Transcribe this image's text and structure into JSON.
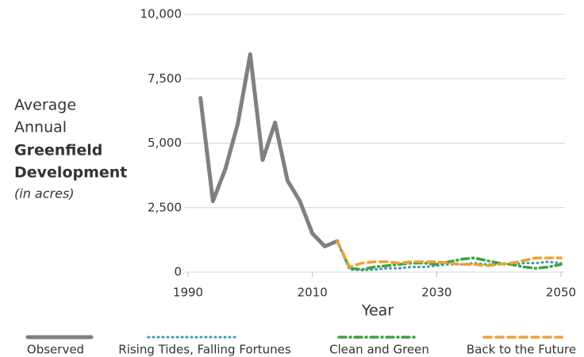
{
  "chart_data": {
    "type": "line",
    "xlabel": "Year",
    "ylabel": [
      "Average",
      "Annual",
      "Greenfield",
      "Development",
      "(in acres)"
    ],
    "xlim": [
      1990,
      2050
    ],
    "xticks": [
      1990,
      2010,
      2030,
      2050
    ],
    "ylim": [
      0,
      10000
    ],
    "yticks": [
      0,
      {
        "value": 2500,
        "label": "2,500"
      },
      {
        "value": 5000,
        "label": "5,000"
      },
      {
        "value": 7500,
        "label": "7,500"
      },
      {
        "value": 10000,
        "label": "10,000"
      }
    ],
    "grid": true,
    "legend": "bottom",
    "series": [
      {
        "name": "Observed",
        "color": "#808080",
        "style": "solid",
        "x": [
          1992,
          1994,
          1996,
          1998,
          2000,
          2002,
          2004,
          2006,
          2008,
          2010,
          2012,
          2014
        ],
        "values": [
          6750,
          2750,
          4000,
          5750,
          8450,
          4350,
          5800,
          3550,
          2750,
          1500,
          1000,
          1200
        ]
      },
      {
        "name": "Rising Tides, Falling Fortunes",
        "color": "#3a9bab",
        "style": "dotted",
        "x": [
          2014,
          2016,
          2018,
          2020,
          2022,
          2024,
          2026,
          2028,
          2030,
          2032,
          2034,
          2036,
          2038,
          2040,
          2042,
          2044,
          2046,
          2048,
          2050
        ],
        "values": [
          1200,
          100,
          80,
          100,
          150,
          150,
          200,
          200,
          250,
          300,
          300,
          350,
          300,
          300,
          300,
          350,
          350,
          400,
          350
        ]
      },
      {
        "name": "Clean and Green",
        "color": "#3aa23f",
        "style": "dashdot",
        "x": [
          2014,
          2016,
          2018,
          2020,
          2022,
          2024,
          2026,
          2028,
          2030,
          2032,
          2034,
          2036,
          2038,
          2040,
          2042,
          2044,
          2046,
          2048,
          2050
        ],
        "values": [
          1200,
          150,
          100,
          200,
          250,
          300,
          350,
          350,
          300,
          400,
          500,
          550,
          450,
          350,
          300,
          200,
          150,
          200,
          300
        ]
      },
      {
        "name": "Back to the Future",
        "color": "#f0a030",
        "style": "dashed",
        "x": [
          2014,
          2016,
          2018,
          2020,
          2022,
          2024,
          2026,
          2028,
          2030,
          2032,
          2034,
          2036,
          2038,
          2040,
          2042,
          2044,
          2046,
          2048,
          2050
        ],
        "values": [
          1200,
          200,
          350,
          400,
          400,
          350,
          400,
          400,
          400,
          350,
          300,
          300,
          250,
          300,
          350,
          450,
          550,
          550,
          550
        ]
      }
    ]
  }
}
